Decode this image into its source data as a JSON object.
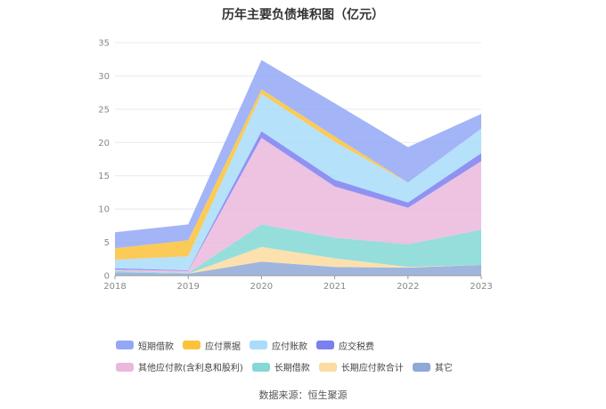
{
  "chart_data": {
    "type": "area",
    "stacked": true,
    "title": "历年主要负债堆积图（亿元）",
    "x": [
      "2018",
      "2019",
      "2020",
      "2021",
      "2022",
      "2023"
    ],
    "ylim": [
      0,
      35
    ],
    "yticks": [
      0,
      5,
      10,
      15,
      20,
      25,
      30,
      35
    ],
    "grid": true,
    "legend_position": "bottom",
    "series": [
      {
        "name": "其它",
        "color": "#8fa8d8",
        "values": [
          0.5,
          0.3,
          2.1,
          1.3,
          1.2,
          1.6
        ]
      },
      {
        "name": "长期应付款合计",
        "color": "#fcdca0",
        "values": [
          0.0,
          0.0,
          2.2,
          1.3,
          0.1,
          0.0
        ]
      },
      {
        "name": "长期借款",
        "color": "#84d8d6",
        "values": [
          0.2,
          0.1,
          3.4,
          3.1,
          3.4,
          5.3
        ]
      },
      {
        "name": "其他应付款(含利息和股利)",
        "color": "#eab8dc",
        "values": [
          0.2,
          0.3,
          13.0,
          7.7,
          5.5,
          10.3
        ]
      },
      {
        "name": "应交税费",
        "color": "#7b7ff0",
        "values": [
          0.2,
          0.1,
          1.0,
          1.0,
          0.8,
          1.2
        ]
      },
      {
        "name": "应付账款",
        "color": "#a8dcfa",
        "values": [
          1.3,
          2.1,
          5.6,
          5.7,
          3.0,
          3.7
        ]
      },
      {
        "name": "应付票据",
        "color": "#fcc23a",
        "values": [
          1.7,
          2.4,
          0.7,
          0.8,
          0.0,
          0.0
        ]
      },
      {
        "name": "短期借款",
        "color": "#93a8f5",
        "values": [
          2.4,
          2.4,
          4.4,
          5.0,
          5.3,
          2.2
        ]
      }
    ]
  },
  "legend_order": [
    "短期借款",
    "应付票据",
    "应付账款",
    "应交税费",
    "其他应付款(含利息和股利)",
    "长期借款",
    "长期应付款合计",
    "其它"
  ],
  "footnote": "数据来源：恒生聚源"
}
